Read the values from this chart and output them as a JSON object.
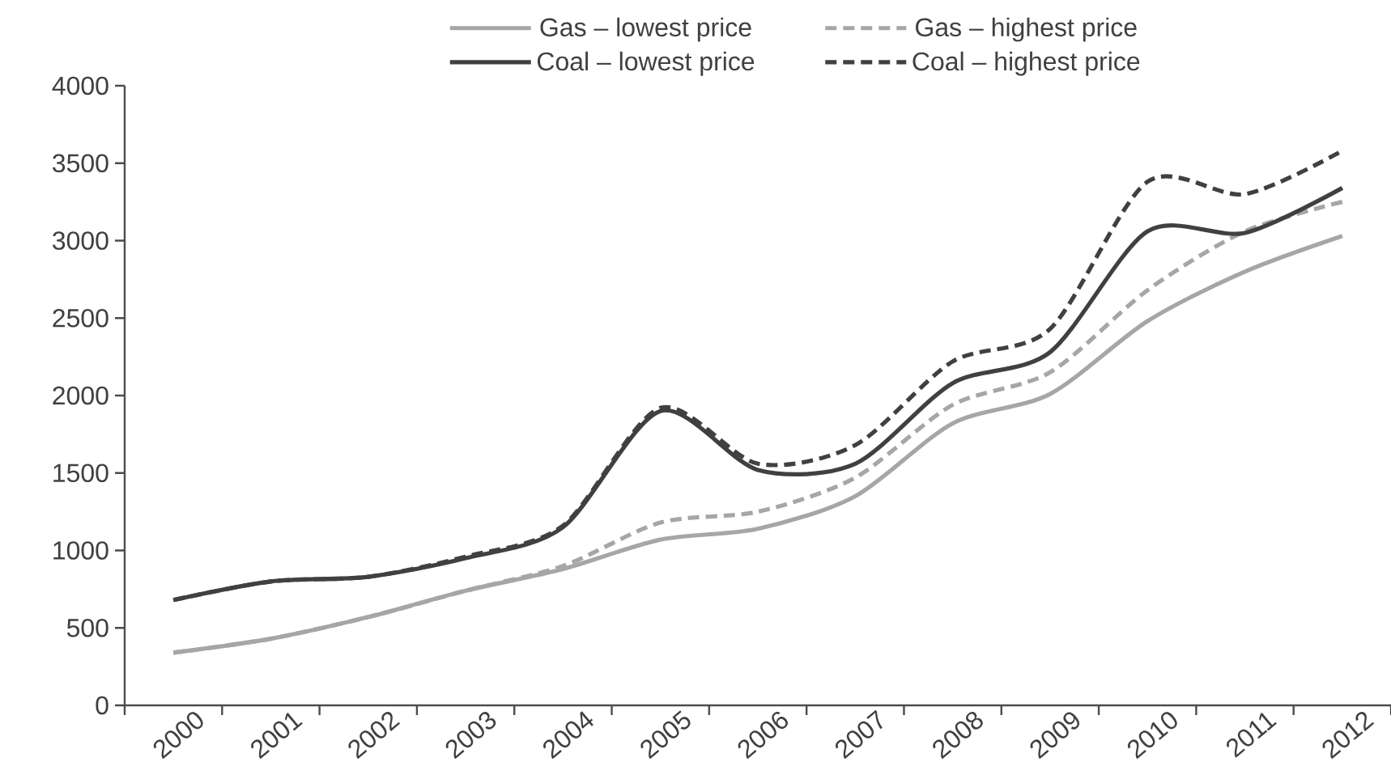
{
  "chart_data": {
    "type": "line",
    "categories": [
      "2000",
      "2001",
      "2002",
      "2003",
      "2004",
      "2005",
      "2006",
      "2007",
      "2008",
      "2009",
      "2010",
      "2011",
      "2012"
    ],
    "series": [
      {
        "name": "Gas – lowest price",
        "color": "#a6a6a6",
        "line_style": "solid",
        "values": [
          340,
          430,
          570,
          740,
          880,
          1070,
          1140,
          1350,
          1820,
          2010,
          2480,
          2800,
          3030
        ]
      },
      {
        "name": "Gas – highest price",
        "color": "#a6a6a6",
        "line_style": "dashed",
        "values": [
          340,
          430,
          570,
          740,
          900,
          1180,
          1250,
          1470,
          1940,
          2150,
          2680,
          3060,
          3250
        ]
      },
      {
        "name": "Coal – lowest price",
        "color": "#404040",
        "line_style": "solid",
        "values": [
          680,
          800,
          830,
          950,
          1150,
          1900,
          1520,
          1560,
          2080,
          2280,
          3060,
          3050,
          3340
        ]
      },
      {
        "name": "Coal – highest price",
        "color": "#404040",
        "line_style": "dashed",
        "values": [
          680,
          800,
          830,
          960,
          1160,
          1920,
          1560,
          1680,
          2220,
          2430,
          3380,
          3300,
          3580
        ]
      }
    ],
    "ylim": [
      0,
      4000
    ],
    "yticks": [
      0,
      500,
      1000,
      1500,
      2000,
      2500,
      3000,
      3500,
      4000
    ],
    "grid": false,
    "legend": "top"
  }
}
